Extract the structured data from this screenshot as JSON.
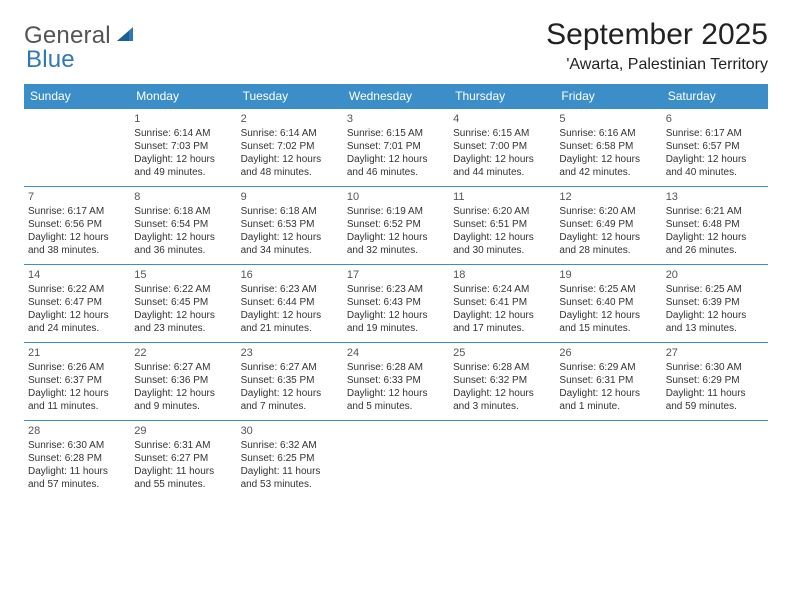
{
  "logo": {
    "word1": "General",
    "word2": "Blue"
  },
  "colors": {
    "header_bg": "#3c8ec9",
    "header_text": "#ffffff",
    "cell_border": "#3c8ec9",
    "body_text": "#333333",
    "logo_gray": "#555555",
    "logo_blue": "#2f78b7",
    "page_bg": "#ffffff"
  },
  "typography": {
    "title_fontsize": 30,
    "location_fontsize": 16,
    "dayhead_fontsize": 12,
    "cell_fontsize": 10,
    "logo_fontsize": 24
  },
  "title": "September 2025",
  "location": "'Awarta, Palestinian Territory",
  "dayNames": [
    "Sunday",
    "Monday",
    "Tuesday",
    "Wednesday",
    "Thursday",
    "Friday",
    "Saturday"
  ],
  "weeks": [
    [
      null,
      {
        "n": "1",
        "sr": "Sunrise: 6:14 AM",
        "ss": "Sunset: 7:03 PM",
        "dl": "Daylight: 12 hours and 49 minutes."
      },
      {
        "n": "2",
        "sr": "Sunrise: 6:14 AM",
        "ss": "Sunset: 7:02 PM",
        "dl": "Daylight: 12 hours and 48 minutes."
      },
      {
        "n": "3",
        "sr": "Sunrise: 6:15 AM",
        "ss": "Sunset: 7:01 PM",
        "dl": "Daylight: 12 hours and 46 minutes."
      },
      {
        "n": "4",
        "sr": "Sunrise: 6:15 AM",
        "ss": "Sunset: 7:00 PM",
        "dl": "Daylight: 12 hours and 44 minutes."
      },
      {
        "n": "5",
        "sr": "Sunrise: 6:16 AM",
        "ss": "Sunset: 6:58 PM",
        "dl": "Daylight: 12 hours and 42 minutes."
      },
      {
        "n": "6",
        "sr": "Sunrise: 6:17 AM",
        "ss": "Sunset: 6:57 PM",
        "dl": "Daylight: 12 hours and 40 minutes."
      }
    ],
    [
      {
        "n": "7",
        "sr": "Sunrise: 6:17 AM",
        "ss": "Sunset: 6:56 PM",
        "dl": "Daylight: 12 hours and 38 minutes."
      },
      {
        "n": "8",
        "sr": "Sunrise: 6:18 AM",
        "ss": "Sunset: 6:54 PM",
        "dl": "Daylight: 12 hours and 36 minutes."
      },
      {
        "n": "9",
        "sr": "Sunrise: 6:18 AM",
        "ss": "Sunset: 6:53 PM",
        "dl": "Daylight: 12 hours and 34 minutes."
      },
      {
        "n": "10",
        "sr": "Sunrise: 6:19 AM",
        "ss": "Sunset: 6:52 PM",
        "dl": "Daylight: 12 hours and 32 minutes."
      },
      {
        "n": "11",
        "sr": "Sunrise: 6:20 AM",
        "ss": "Sunset: 6:51 PM",
        "dl": "Daylight: 12 hours and 30 minutes."
      },
      {
        "n": "12",
        "sr": "Sunrise: 6:20 AM",
        "ss": "Sunset: 6:49 PM",
        "dl": "Daylight: 12 hours and 28 minutes."
      },
      {
        "n": "13",
        "sr": "Sunrise: 6:21 AM",
        "ss": "Sunset: 6:48 PM",
        "dl": "Daylight: 12 hours and 26 minutes."
      }
    ],
    [
      {
        "n": "14",
        "sr": "Sunrise: 6:22 AM",
        "ss": "Sunset: 6:47 PM",
        "dl": "Daylight: 12 hours and 24 minutes."
      },
      {
        "n": "15",
        "sr": "Sunrise: 6:22 AM",
        "ss": "Sunset: 6:45 PM",
        "dl": "Daylight: 12 hours and 23 minutes."
      },
      {
        "n": "16",
        "sr": "Sunrise: 6:23 AM",
        "ss": "Sunset: 6:44 PM",
        "dl": "Daylight: 12 hours and 21 minutes."
      },
      {
        "n": "17",
        "sr": "Sunrise: 6:23 AM",
        "ss": "Sunset: 6:43 PM",
        "dl": "Daylight: 12 hours and 19 minutes."
      },
      {
        "n": "18",
        "sr": "Sunrise: 6:24 AM",
        "ss": "Sunset: 6:41 PM",
        "dl": "Daylight: 12 hours and 17 minutes."
      },
      {
        "n": "19",
        "sr": "Sunrise: 6:25 AM",
        "ss": "Sunset: 6:40 PM",
        "dl": "Daylight: 12 hours and 15 minutes."
      },
      {
        "n": "20",
        "sr": "Sunrise: 6:25 AM",
        "ss": "Sunset: 6:39 PM",
        "dl": "Daylight: 12 hours and 13 minutes."
      }
    ],
    [
      {
        "n": "21",
        "sr": "Sunrise: 6:26 AM",
        "ss": "Sunset: 6:37 PM",
        "dl": "Daylight: 12 hours and 11 minutes."
      },
      {
        "n": "22",
        "sr": "Sunrise: 6:27 AM",
        "ss": "Sunset: 6:36 PM",
        "dl": "Daylight: 12 hours and 9 minutes."
      },
      {
        "n": "23",
        "sr": "Sunrise: 6:27 AM",
        "ss": "Sunset: 6:35 PM",
        "dl": "Daylight: 12 hours and 7 minutes."
      },
      {
        "n": "24",
        "sr": "Sunrise: 6:28 AM",
        "ss": "Sunset: 6:33 PM",
        "dl": "Daylight: 12 hours and 5 minutes."
      },
      {
        "n": "25",
        "sr": "Sunrise: 6:28 AM",
        "ss": "Sunset: 6:32 PM",
        "dl": "Daylight: 12 hours and 3 minutes."
      },
      {
        "n": "26",
        "sr": "Sunrise: 6:29 AM",
        "ss": "Sunset: 6:31 PM",
        "dl": "Daylight: 12 hours and 1 minute."
      },
      {
        "n": "27",
        "sr": "Sunrise: 6:30 AM",
        "ss": "Sunset: 6:29 PM",
        "dl": "Daylight: 11 hours and 59 minutes."
      }
    ],
    [
      {
        "n": "28",
        "sr": "Sunrise: 6:30 AM",
        "ss": "Sunset: 6:28 PM",
        "dl": "Daylight: 11 hours and 57 minutes."
      },
      {
        "n": "29",
        "sr": "Sunrise: 6:31 AM",
        "ss": "Sunset: 6:27 PM",
        "dl": "Daylight: 11 hours and 55 minutes."
      },
      {
        "n": "30",
        "sr": "Sunrise: 6:32 AM",
        "ss": "Sunset: 6:25 PM",
        "dl": "Daylight: 11 hours and 53 minutes."
      },
      null,
      null,
      null,
      null
    ]
  ]
}
